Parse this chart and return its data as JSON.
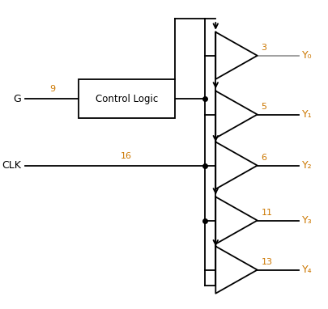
{
  "background": "#ffffff",
  "line_color": "#000000",
  "orange_color": "#cc7700",
  "gray_color": "#999999",
  "G_label": "G",
  "CLK_label": "CLK",
  "box_label": "Control Logic",
  "G_net": "9",
  "CLK_net": "16",
  "buffer_nets": [
    "3",
    "5",
    "6",
    "11",
    "13"
  ],
  "output_labels": [
    "Y₀",
    "Y₁",
    "Y₂",
    "Y₃",
    "Y₄"
  ],
  "figsize": [
    4.06,
    3.82
  ],
  "dpi": 100
}
